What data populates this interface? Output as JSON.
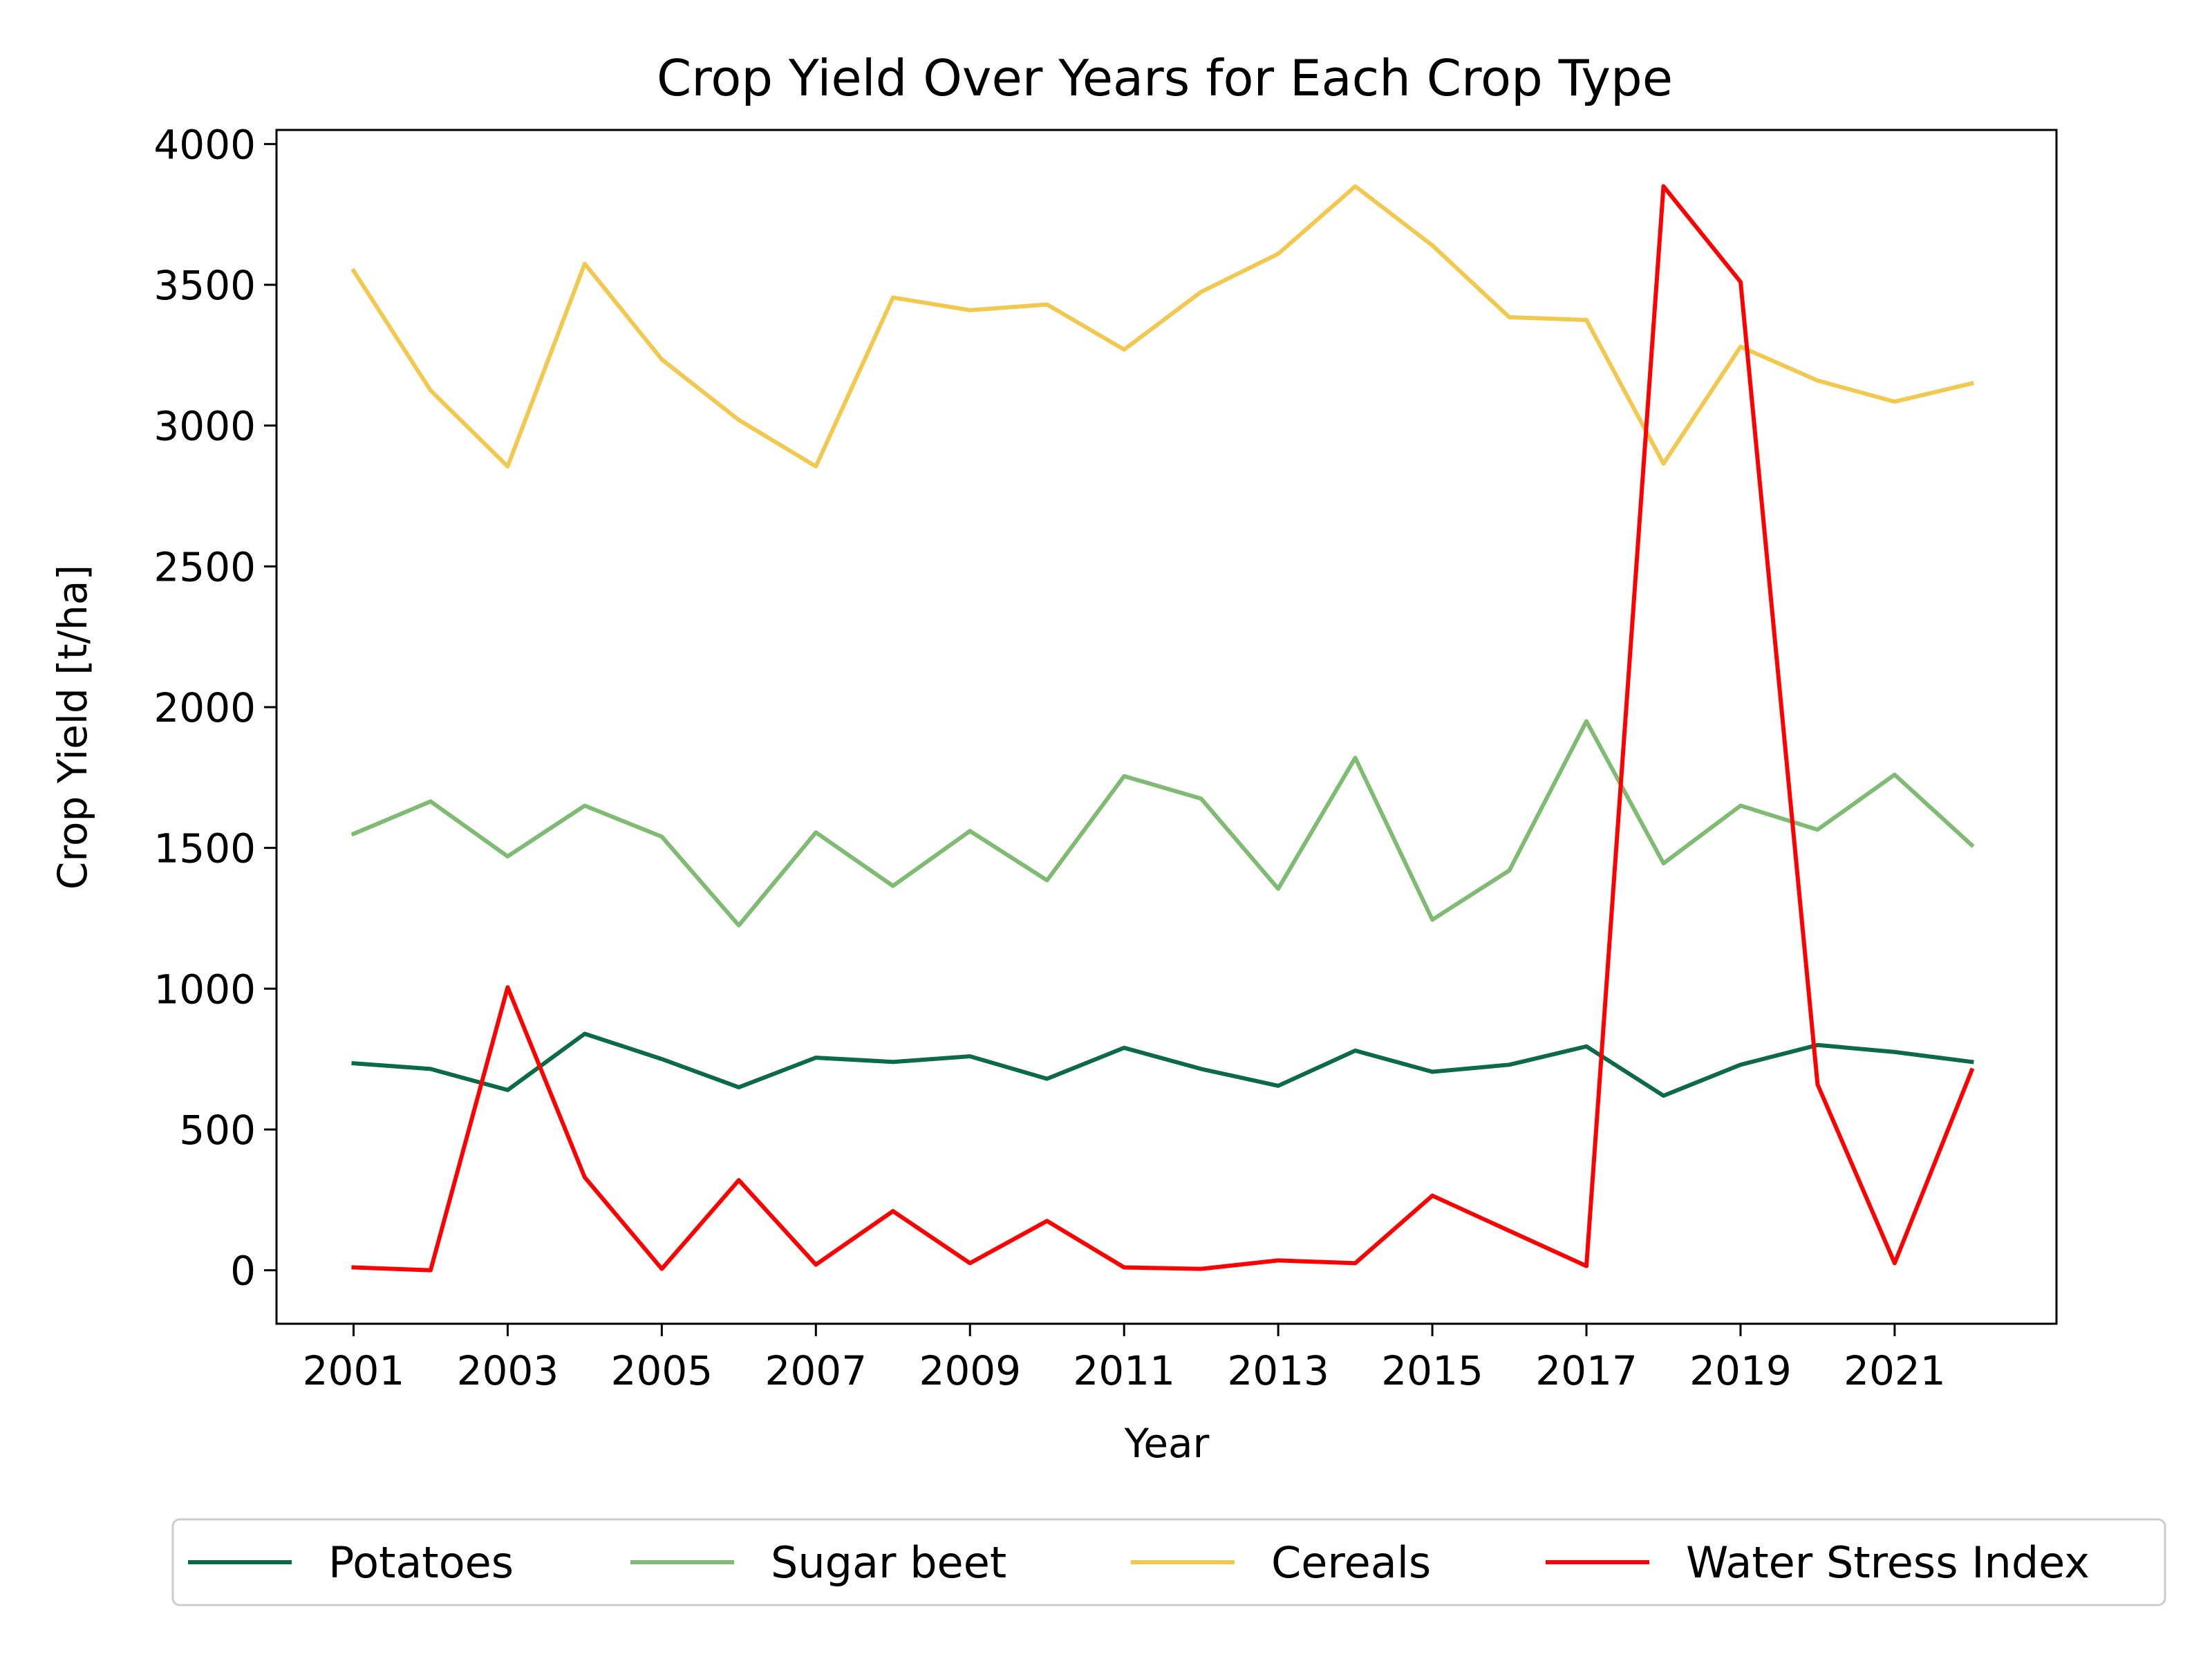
{
  "chart_data": {
    "type": "line",
    "title": "Crop Yield Over Years for Each Crop Type",
    "xlabel": "Year",
    "ylabel": "Crop Yield [t/ha]",
    "x": [
      2001,
      2002,
      2003,
      2004,
      2005,
      2006,
      2007,
      2008,
      2009,
      2010,
      2011,
      2012,
      2013,
      2014,
      2015,
      2016,
      2017,
      2018,
      2019,
      2020,
      2021,
      2022
    ],
    "xticks": [
      "2001",
      "2003",
      "2005",
      "2007",
      "2009",
      "2011",
      "2013",
      "2015",
      "2017",
      "2019",
      "2021"
    ],
    "yticks": [
      "0",
      "500",
      "1000",
      "1500",
      "2000",
      "2500",
      "3000",
      "3500",
      "4000"
    ],
    "xlim": [
      2000,
      2023.1
    ],
    "ylim": [
      -190,
      4050
    ],
    "grid": false,
    "legend_position": "bottom-center",
    "series": [
      {
        "name": "Potatoes",
        "color": "#0b6a47",
        "values": [
          735,
          715,
          640,
          840,
          750,
          650,
          755,
          740,
          760,
          680,
          790,
          715,
          655,
          780,
          705,
          730,
          795,
          620,
          730,
          800,
          775,
          740
        ]
      },
      {
        "name": "Sugar beet",
        "color": "#7fbb72",
        "values": [
          1550,
          1665,
          1470,
          1650,
          1540,
          1225,
          1555,
          1365,
          1560,
          1385,
          1755,
          1675,
          1355,
          1820,
          1245,
          1420,
          1950,
          1445,
          1650,
          1565,
          1760,
          1510
        ]
      },
      {
        "name": "Cereals",
        "color": "#f2c84f",
        "values": [
          3550,
          3125,
          2855,
          3575,
          3235,
          3020,
          2855,
          3455,
          3410,
          3430,
          3270,
          3475,
          3610,
          3850,
          3640,
          3385,
          3375,
          2865,
          3280,
          3160,
          3085,
          3150
        ]
      },
      {
        "name": "Water Stress Index",
        "color": "#ff0000",
        "values": [
          10,
          0,
          1005,
          330,
          5,
          320,
          20,
          210,
          25,
          175,
          10,
          5,
          35,
          25,
          265,
          140,
          15,
          3850,
          3510,
          660,
          25,
          710
        ]
      }
    ]
  }
}
